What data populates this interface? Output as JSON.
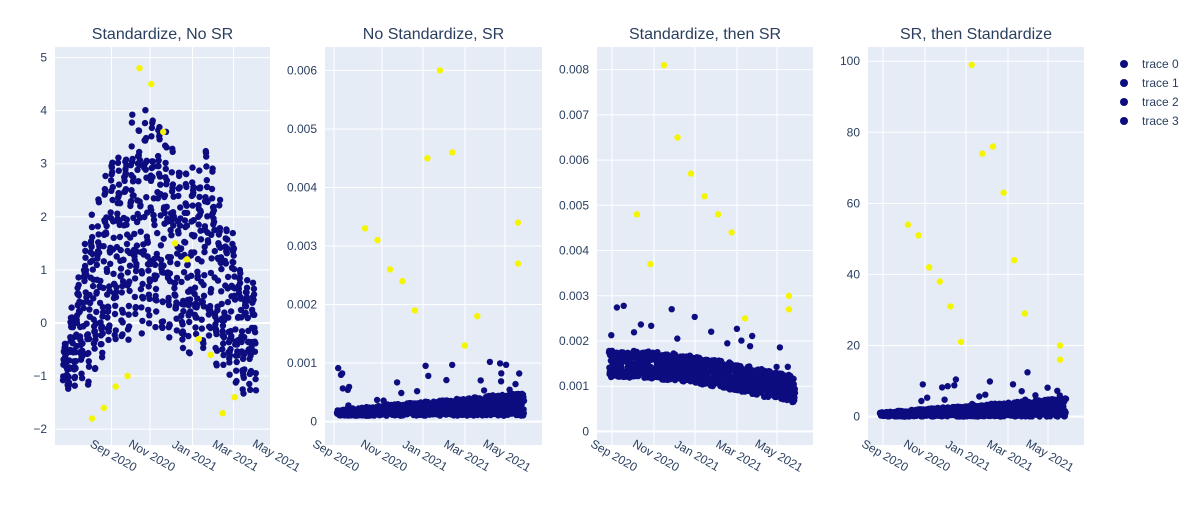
{
  "colors": {
    "background": "#ffffff",
    "plot_bg": "#e5ecf6",
    "grid": "#ffffff",
    "text": "#2a3f5f",
    "outlier": "#f5f500",
    "trace": "#0d0d80"
  },
  "legend": {
    "position": "top-right",
    "items": [
      {
        "label": "trace 0",
        "color": "#0d0d80"
      },
      {
        "label": "trace 1",
        "color": "#0d0d80"
      },
      {
        "label": "trace 2",
        "color": "#0d0d80"
      },
      {
        "label": "trace 3",
        "color": "#0d0d80"
      }
    ]
  },
  "chart_data": [
    {
      "type": "scatter",
      "title": "Standardize, No SR",
      "x_ticks": [
        "Sep 2020",
        "Nov 2020",
        "Jan 2021",
        "Mar 2021",
        "May 2021"
      ],
      "y_ticks": [
        "5",
        "4",
        "3",
        "2",
        "1",
        "0",
        "−1",
        "−2"
      ],
      "ylim": [
        -2.3,
        5.2
      ],
      "grid": true,
      "series": [
        {
          "values_description": "dense band approx.",
          "x": [
            "2020-08-28",
            "2020-10-01",
            "2020-11-01",
            "2020-12-01",
            "2021-01-01",
            "2021-02-01",
            "2021-03-01",
            "2021-04-01",
            "2021-05-10"
          ],
          "y_mean": [
            -1.2,
            -0.5,
            1.0,
            1.5,
            1.8,
            0.8,
            0.4,
            -0.2,
            -1.0
          ],
          "y_high": [
            -0.5,
            1.8,
            3.2,
            4.1,
            4.0,
            2.8,
            3.4,
            1.8,
            0.7
          ],
          "y_low": [
            -1.4,
            -1.2,
            -0.6,
            -0.4,
            -0.2,
            -0.8,
            -0.7,
            -1.3,
            -1.5
          ]
        }
      ],
      "outliers_y": [
        -1.8,
        -1.6,
        -1.2,
        -1.0,
        4.8,
        4.5,
        3.6,
        1.5,
        1.2,
        -0.3,
        -0.6,
        -1.7,
        -1.4
      ]
    },
    {
      "type": "scatter",
      "title": "No Standardize, SR",
      "x_ticks": [
        "Sep 2020",
        "Nov 2020",
        "Jan 2021",
        "Mar 2021",
        "May 2021"
      ],
      "y_ticks": [
        "0.006",
        "0.005",
        "0.004",
        "0.003",
        "0.002",
        "0.001",
        "0"
      ],
      "ylim": [
        -0.0004,
        0.0064
      ],
      "grid": true,
      "series": [
        {
          "baseline": 0.0001,
          "band_high": 0.0005
        }
      ],
      "outliers_y": [
        0.0033,
        0.0031,
        0.0026,
        0.0024,
        0.0019,
        0.0045,
        0.006,
        0.0046,
        0.0013,
        0.0018,
        0.0034,
        0.0027
      ]
    },
    {
      "type": "scatter",
      "title": "Standardize, then SR",
      "x_ticks": [
        "Sep 2020",
        "Nov 2020",
        "Jan 2021",
        "Mar 2021",
        "May 2021"
      ],
      "y_ticks": [
        "0.008",
        "0.007",
        "0.006",
        "0.005",
        "0.004",
        "0.003",
        "0.002",
        "0.001",
        "0"
      ],
      "ylim": [
        -0.0003,
        0.0085
      ],
      "grid": true,
      "series": [
        {
          "baseline": 0.0015,
          "band_low": 0.0008
        }
      ],
      "outliers_y": [
        0.0048,
        0.0037,
        0.0081,
        0.0065,
        0.0057,
        0.0052,
        0.0048,
        0.0044,
        0.0025,
        0.003,
        0.0027
      ]
    },
    {
      "type": "scatter",
      "title": "SR, then Standardize",
      "x_ticks": [
        "Sep 2020",
        "Nov 2020",
        "Jan 2021",
        "Mar 2021",
        "May 2021"
      ],
      "y_ticks": [
        "100",
        "80",
        "60",
        "40",
        "20",
        "0"
      ],
      "ylim": [
        -8,
        104
      ],
      "grid": true,
      "series": [
        {
          "baseline": 0,
          "band_high": 4
        }
      ],
      "outliers_y": [
        54,
        51,
        42,
        38,
        31,
        21,
        99,
        74,
        76,
        63,
        44,
        29,
        20,
        16
      ]
    }
  ]
}
